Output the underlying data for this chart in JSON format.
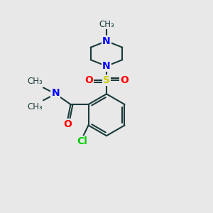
{
  "background_color": "#e8e8e8",
  "bond_color": "#1a3a3a",
  "bond_width": 1.5,
  "atom_colors": {
    "N": "#0000ff",
    "O": "#ff0000",
    "S": "#cccc00",
    "Cl": "#00cc00",
    "C": "#1a3a3a"
  },
  "font_size_atom": 10,
  "font_size_small": 8.5,
  "figsize": [
    3.0,
    3.0
  ],
  "dpi": 100,
  "xlim": [
    0,
    10
  ],
  "ylim": [
    0,
    10
  ]
}
